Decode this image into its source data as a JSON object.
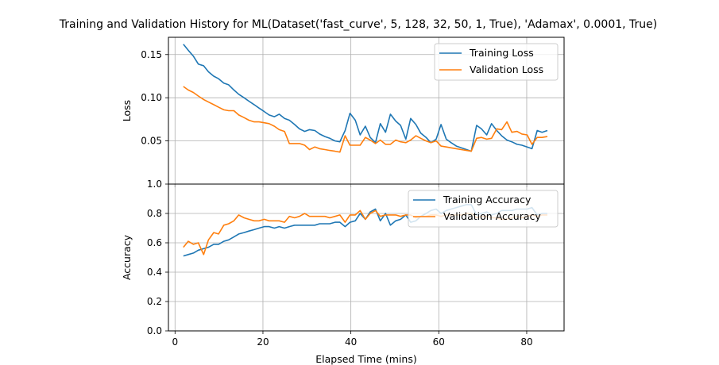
{
  "title": "Training and Validation History for ML(Dataset('fast_curve', 5, 128, 32, 50, 1, True), 'Adamax', 0.0001, True)",
  "colors": {
    "training": "#1f77b4",
    "validation": "#ff7f0e",
    "grid": "#b0b0b0"
  },
  "chart_data": [
    {
      "type": "line",
      "ylabel": "Loss",
      "xlabel": "",
      "xlim": [
        -1.5,
        88.5
      ],
      "ylim": [
        0,
        0.17
      ],
      "yticks": [
        0.05,
        0.1,
        0.15
      ],
      "ytick_labels": [
        "0.05",
        "0.10",
        "0.15"
      ],
      "xticks": [
        0,
        20,
        40,
        60,
        80
      ],
      "grid": true,
      "legend": "top-right",
      "x": [
        1.9,
        3.0,
        4.2,
        5.3,
        6.5,
        7.6,
        8.8,
        9.9,
        11.1,
        12.2,
        13.4,
        14.5,
        15.7,
        16.8,
        18.0,
        19.1,
        20.3,
        21.4,
        22.6,
        23.7,
        24.9,
        26.0,
        27.2,
        28.3,
        29.5,
        30.6,
        31.8,
        32.9,
        34.1,
        35.2,
        36.4,
        37.5,
        38.7,
        39.8,
        41.0,
        42.1,
        43.3,
        44.4,
        45.6,
        46.7,
        47.9,
        49.0,
        50.2,
        51.3,
        52.5,
        53.6,
        54.8,
        55.9,
        57.1,
        58.2,
        59.4,
        60.5,
        61.7,
        62.8,
        64.0,
        65.1,
        66.3,
        67.4,
        68.6,
        69.7,
        70.9,
        72.0,
        73.2,
        74.3,
        75.5,
        76.6,
        77.8,
        78.9,
        80.1,
        81.2,
        82.4,
        83.5,
        84.7
      ],
      "series": [
        {
          "name": "Training Loss",
          "color": "#1f77b4",
          "values": [
            0.162,
            0.155,
            0.148,
            0.139,
            0.137,
            0.13,
            0.125,
            0.122,
            0.117,
            0.115,
            0.109,
            0.104,
            0.1,
            0.096,
            0.092,
            0.088,
            0.084,
            0.08,
            0.078,
            0.081,
            0.076,
            0.074,
            0.069,
            0.064,
            0.061,
            0.063,
            0.062,
            0.058,
            0.055,
            0.053,
            0.05,
            0.049,
            0.062,
            0.082,
            0.074,
            0.057,
            0.067,
            0.054,
            0.048,
            0.07,
            0.06,
            0.081,
            0.073,
            0.068,
            0.052,
            0.076,
            0.069,
            0.059,
            0.054,
            0.048,
            0.052,
            0.069,
            0.052,
            0.048,
            0.044,
            0.042,
            0.04,
            0.038,
            0.068,
            0.064,
            0.057,
            0.07,
            0.062,
            0.056,
            0.051,
            0.049,
            0.046,
            0.045,
            0.043,
            0.041,
            0.062,
            0.06,
            0.062
          ]
        },
        {
          "name": "Validation Loss",
          "color": "#ff7f0e",
          "values": [
            0.113,
            0.109,
            0.106,
            0.102,
            0.098,
            0.095,
            0.092,
            0.089,
            0.086,
            0.085,
            0.085,
            0.08,
            0.077,
            0.074,
            0.072,
            0.072,
            0.071,
            0.07,
            0.067,
            0.063,
            0.061,
            0.047,
            0.047,
            0.047,
            0.045,
            0.04,
            0.043,
            0.041,
            0.04,
            0.039,
            0.038,
            0.037,
            0.056,
            0.045,
            0.045,
            0.045,
            0.054,
            0.051,
            0.047,
            0.051,
            0.046,
            0.046,
            0.051,
            0.049,
            0.048,
            0.051,
            0.056,
            0.053,
            0.05,
            0.048,
            0.05,
            0.044,
            0.043,
            0.042,
            0.041,
            0.04,
            0.039,
            0.038,
            0.053,
            0.054,
            0.052,
            0.053,
            0.064,
            0.063,
            0.072,
            0.06,
            0.061,
            0.058,
            0.057,
            0.046,
            0.054,
            0.054,
            0.055
          ]
        }
      ]
    },
    {
      "type": "line",
      "ylabel": "Accuracy",
      "xlabel": "Elapsed Time (mins)",
      "xlim": [
        -1.5,
        88.5
      ],
      "ylim": [
        0.0,
        1.0
      ],
      "yticks": [
        0.0,
        0.2,
        0.4,
        0.6,
        0.8,
        1.0
      ],
      "ytick_labels": [
        "0.0",
        "0.2",
        "0.4",
        "0.6",
        "0.8",
        "1.0"
      ],
      "xticks": [
        0,
        20,
        40,
        60,
        80
      ],
      "xtick_labels": [
        "0",
        "20",
        "40",
        "60",
        "80"
      ],
      "grid": true,
      "legend": "top-right",
      "x": [
        1.9,
        3.0,
        4.2,
        5.3,
        6.5,
        7.6,
        8.8,
        9.9,
        11.1,
        12.2,
        13.4,
        14.5,
        15.7,
        16.8,
        18.0,
        19.1,
        20.3,
        21.4,
        22.6,
        23.7,
        24.9,
        26.0,
        27.2,
        28.3,
        29.5,
        30.6,
        31.8,
        32.9,
        34.1,
        35.2,
        36.4,
        37.5,
        38.7,
        39.8,
        41.0,
        42.1,
        43.3,
        44.4,
        45.6,
        46.7,
        47.9,
        49.0,
        50.2,
        51.3,
        52.5,
        53.6,
        54.8,
        55.9,
        57.1,
        58.2,
        59.4,
        60.5,
        61.7,
        62.8,
        64.0,
        65.1,
        66.3,
        67.4,
        68.6,
        69.7,
        70.9,
        72.0,
        73.2,
        74.3,
        75.5,
        76.6,
        77.8,
        78.9,
        80.1,
        81.2,
        82.4,
        83.5,
        84.7
      ],
      "series": [
        {
          "name": "Training Accuracy",
          "color": "#1f77b4",
          "values": [
            0.51,
            0.52,
            0.53,
            0.55,
            0.56,
            0.57,
            0.59,
            0.59,
            0.61,
            0.62,
            0.64,
            0.66,
            0.67,
            0.68,
            0.69,
            0.7,
            0.71,
            0.71,
            0.7,
            0.71,
            0.7,
            0.71,
            0.72,
            0.72,
            0.72,
            0.72,
            0.72,
            0.73,
            0.73,
            0.73,
            0.74,
            0.74,
            0.71,
            0.74,
            0.75,
            0.8,
            0.76,
            0.81,
            0.83,
            0.75,
            0.8,
            0.72,
            0.75,
            0.76,
            0.79,
            0.74,
            0.75,
            0.78,
            0.8,
            0.82,
            0.83,
            0.8,
            0.82,
            0.83,
            0.84,
            0.85,
            0.86,
            0.86,
            0.79,
            0.8,
            0.81,
            0.79,
            0.8,
            0.82,
            0.82,
            0.82,
            0.83,
            0.83,
            0.83,
            0.84,
            0.79,
            0.8,
            0.8
          ]
        },
        {
          "name": "Validation Accuracy",
          "color": "#ff7f0e",
          "values": [
            0.57,
            0.61,
            0.59,
            0.6,
            0.52,
            0.62,
            0.67,
            0.66,
            0.72,
            0.73,
            0.75,
            0.79,
            0.77,
            0.76,
            0.75,
            0.75,
            0.76,
            0.75,
            0.75,
            0.75,
            0.74,
            0.78,
            0.77,
            0.78,
            0.8,
            0.78,
            0.78,
            0.78,
            0.78,
            0.77,
            0.78,
            0.79,
            0.74,
            0.79,
            0.79,
            0.82,
            0.76,
            0.8,
            0.82,
            0.78,
            0.79,
            0.79,
            0.79,
            0.78,
            0.79,
            0.79,
            0.77,
            0.78,
            0.78,
            0.79,
            0.79,
            0.78,
            0.79,
            0.79,
            0.79,
            0.79,
            0.8,
            0.8,
            0.77,
            0.78,
            0.78,
            0.77,
            0.77,
            0.76,
            0.76,
            0.77,
            0.78,
            0.77,
            0.78,
            0.79,
            0.78,
            0.79,
            0.79
          ]
        }
      ]
    }
  ]
}
